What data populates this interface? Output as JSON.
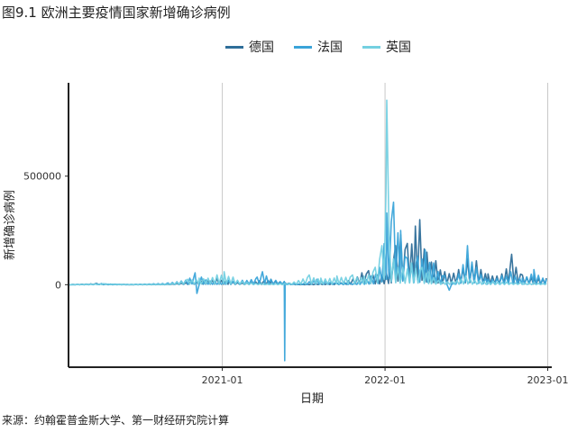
{
  "colors": {
    "germany": "#2e6e99",
    "france": "#3aa4d9",
    "uk": "#74d0e1",
    "grid": "#c8c8c8",
    "axis": "#222222"
  },
  "chart_data": {
    "type": "line",
    "title": "图9.1 欧洲主要疫情国家新增确诊病例",
    "xlabel": "日期",
    "ylabel": "新增确诊病例",
    "source": "来源：约翰霍普金斯大学、第一财经研究院计算",
    "x_ticks": [
      "2021-01",
      "2022-01",
      "2023-01"
    ],
    "y_ticks": [
      0,
      500000
    ],
    "y_tick_labels": [
      "0",
      "500000"
    ],
    "xlim": [
      "2020-01-22",
      "2023-01-10"
    ],
    "ylim": [
      -380000,
      930000
    ],
    "grid": "vertical major",
    "legend_position": "top",
    "series": [
      {
        "name": "德国",
        "color_key": "germany",
        "x": [
          "2020-01-22",
          "2020-03-25",
          "2020-04-15",
          "2020-06-01",
          "2020-09-01",
          "2020-10-25",
          "2020-11-20",
          "2020-12-20",
          "2021-01-15",
          "2021-02-15",
          "2021-03-25",
          "2021-04-20",
          "2021-05-20",
          "2021-06-20",
          "2021-08-15",
          "2021-10-01",
          "2021-11-10",
          "2021-11-25",
          "2021-12-15",
          "2022-01-10",
          "2022-01-25",
          "2022-02-05",
          "2022-02-20",
          "2022-03-10",
          "2022-03-20",
          "2022-04-05",
          "2022-04-25",
          "2022-05-15",
          "2022-06-15",
          "2022-07-05",
          "2022-07-25",
          "2022-08-20",
          "2022-09-20",
          "2022-10-12",
          "2022-11-05",
          "2022-12-01",
          "2022-12-29"
        ],
        "values": [
          0,
          6000,
          3000,
          800,
          1800,
          15000,
          22000,
          28000,
          20000,
          8000,
          18000,
          25000,
          12000,
          1500,
          6000,
          12000,
          55000,
          65000,
          45000,
          70000,
          180000,
          230000,
          190000,
          270000,
          300000,
          150000,
          110000,
          60000,
          70000,
          120000,
          110000,
          50000,
          50000,
          140000,
          45000,
          40000,
          30000
        ]
      },
      {
        "name": "法国",
        "color_key": "france",
        "x": [
          "2020-01-22",
          "2020-03-25",
          "2020-04-05",
          "2020-06-01",
          "2020-09-01",
          "2020-10-20",
          "2020-11-01",
          "2020-11-05",
          "2020-11-15",
          "2020-12-15",
          "2021-01-15",
          "2021-02-15",
          "2021-03-20",
          "2021-04-01",
          "2021-04-10",
          "2021-05-01",
          "2021-05-20",
          "2021-05-21",
          "2021-05-22",
          "2021-06-15",
          "2021-08-01",
          "2021-09-15",
          "2021-11-01",
          "2021-12-01",
          "2021-12-20",
          "2022-01-05",
          "2022-01-20",
          "2022-02-05",
          "2022-02-20",
          "2022-03-15",
          "2022-04-01",
          "2022-04-20",
          "2022-05-15",
          "2022-05-25",
          "2022-06-15",
          "2022-07-05",
          "2022-07-25",
          "2022-08-20",
          "2022-09-20",
          "2022-10-10",
          "2022-11-05",
          "2022-12-01",
          "2022-12-29"
        ],
        "values": [
          0,
          4000,
          5000,
          500,
          8000,
          30000,
          55000,
          -40000,
          35000,
          15000,
          20000,
          20000,
          35000,
          60000,
          40000,
          20000,
          15000,
          -350000,
          8000,
          3000,
          25000,
          8000,
          10000,
          40000,
          80000,
          330000,
          380000,
          250000,
          120000,
          130000,
          160000,
          100000,
          40000,
          -25000,
          50000,
          180000,
          80000,
          25000,
          40000,
          60000,
          30000,
          70000,
          25000
        ]
      },
      {
        "name": "英国",
        "color_key": "uk",
        "x": [
          "2020-01-22",
          "2020-04-10",
          "2020-06-01",
          "2020-09-01",
          "2020-10-15",
          "2020-11-10",
          "2020-12-20",
          "2021-01-05",
          "2021-01-25",
          "2021-02-15",
          "2021-04-01",
          "2021-06-01",
          "2021-07-15",
          "2021-08-10",
          "2021-09-15",
          "2021-10-20",
          "2021-11-15",
          "2021-12-10",
          "2021-12-25",
          "2022-01-03",
          "2022-01-05",
          "2022-01-10",
          "2022-01-20",
          "2022-02-10",
          "2022-03-01",
          "2022-03-25",
          "2022-04-10",
          "2022-05-01",
          "2022-06-01",
          "2022-07-01",
          "2022-08-01",
          "2022-09-01",
          "2022-10-01",
          "2022-11-01",
          "2022-12-01",
          "2022-12-29"
        ],
        "values": [
          0,
          5000,
          1500,
          3000,
          25000,
          30000,
          45000,
          60000,
          35000,
          15000,
          4000,
          7000,
          45000,
          30000,
          40000,
          45000,
          40000,
          80000,
          180000,
          420000,
          850000,
          230000,
          120000,
          80000,
          100000,
          80000,
          60000,
          20000,
          15000,
          40000,
          18000,
          15000,
          12000,
          10000,
          8000,
          6000
        ]
      }
    ]
  }
}
